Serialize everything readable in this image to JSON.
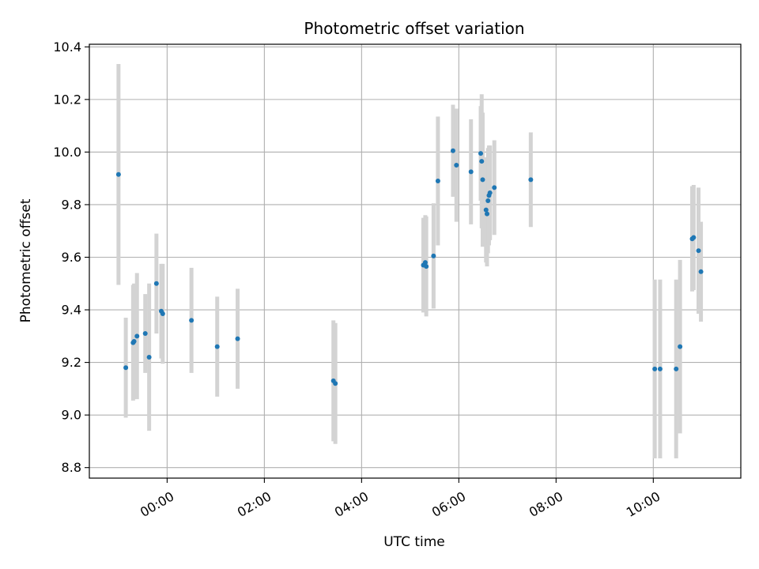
{
  "chart_data": {
    "type": "scatter",
    "title": "Photometric offset variation",
    "xlabel": "UTC time",
    "ylabel": "Photometric offset",
    "x_unit": "hours",
    "xlim": [
      -1.6,
      11.8
    ],
    "ylim": [
      8.76,
      10.41
    ],
    "grid": true,
    "x_ticks": [
      {
        "value": 0,
        "label": "00:00"
      },
      {
        "value": 2,
        "label": "02:00"
      },
      {
        "value": 4,
        "label": "04:00"
      },
      {
        "value": 6,
        "label": "06:00"
      },
      {
        "value": 8,
        "label": "08:00"
      },
      {
        "value": 10,
        "label": "10:00"
      }
    ],
    "y_ticks": [
      {
        "value": 8.8,
        "label": "8.8"
      },
      {
        "value": 9.0,
        "label": "9.0"
      },
      {
        "value": 9.2,
        "label": "9.2"
      },
      {
        "value": 9.4,
        "label": "9.4"
      },
      {
        "value": 9.6,
        "label": "9.6"
      },
      {
        "value": 9.8,
        "label": "9.8"
      },
      {
        "value": 10.0,
        "label": "10.0"
      },
      {
        "value": 10.2,
        "label": "10.2"
      },
      {
        "value": 10.4,
        "label": "10.4"
      }
    ],
    "point_color": "#1f77b4",
    "errorbar_color": "#d3d3d3",
    "points": [
      {
        "x": -1.0,
        "y": 9.915,
        "err": 0.42
      },
      {
        "x": -0.85,
        "y": 9.18,
        "err": 0.19
      },
      {
        "x": -0.7,
        "y": 9.275,
        "err": 0.22
      },
      {
        "x": -0.68,
        "y": 9.28,
        "err": 0.22
      },
      {
        "x": -0.62,
        "y": 9.3,
        "err": 0.24
      },
      {
        "x": -0.45,
        "y": 9.31,
        "err": 0.15
      },
      {
        "x": -0.37,
        "y": 9.22,
        "err": 0.28
      },
      {
        "x": -0.22,
        "y": 9.5,
        "err": 0.19
      },
      {
        "x": -0.12,
        "y": 9.395,
        "err": 0.18
      },
      {
        "x": -0.09,
        "y": 9.385,
        "err": 0.19
      },
      {
        "x": 0.5,
        "y": 9.36,
        "err": 0.2
      },
      {
        "x": 1.03,
        "y": 9.26,
        "err": 0.19
      },
      {
        "x": 1.45,
        "y": 9.29,
        "err": 0.19
      },
      {
        "x": 3.42,
        "y": 9.13,
        "err": 0.23
      },
      {
        "x": 3.46,
        "y": 9.12,
        "err": 0.23
      },
      {
        "x": 5.27,
        "y": 9.57,
        "err": 0.18
      },
      {
        "x": 5.31,
        "y": 9.58,
        "err": 0.18
      },
      {
        "x": 5.33,
        "y": 9.565,
        "err": 0.19
      },
      {
        "x": 5.48,
        "y": 9.605,
        "err": 0.2
      },
      {
        "x": 5.57,
        "y": 9.89,
        "err": 0.245
      },
      {
        "x": 5.88,
        "y": 10.005,
        "err": 0.175
      },
      {
        "x": 5.95,
        "y": 9.95,
        "err": 0.215
      },
      {
        "x": 6.25,
        "y": 9.925,
        "err": 0.2
      },
      {
        "x": 6.45,
        "y": 9.995,
        "err": 0.18
      },
      {
        "x": 6.47,
        "y": 9.965,
        "err": 0.255
      },
      {
        "x": 6.49,
        "y": 9.895,
        "err": 0.255
      },
      {
        "x": 6.56,
        "y": 9.78,
        "err": 0.2
      },
      {
        "x": 6.58,
        "y": 9.765,
        "err": 0.2
      },
      {
        "x": 6.6,
        "y": 9.815,
        "err": 0.2
      },
      {
        "x": 6.62,
        "y": 9.835,
        "err": 0.19
      },
      {
        "x": 6.64,
        "y": 9.845,
        "err": 0.18
      },
      {
        "x": 6.73,
        "y": 9.865,
        "err": 0.18
      },
      {
        "x": 7.48,
        "y": 9.895,
        "err": 0.18
      },
      {
        "x": 10.03,
        "y": 9.175,
        "err": 0.34
      },
      {
        "x": 10.14,
        "y": 9.175,
        "err": 0.34
      },
      {
        "x": 10.47,
        "y": 9.175,
        "err": 0.34
      },
      {
        "x": 10.55,
        "y": 9.26,
        "err": 0.33
      },
      {
        "x": 10.8,
        "y": 9.67,
        "err": 0.2
      },
      {
        "x": 10.83,
        "y": 9.675,
        "err": 0.2
      },
      {
        "x": 10.93,
        "y": 9.625,
        "err": 0.24
      },
      {
        "x": 10.98,
        "y": 9.545,
        "err": 0.19
      }
    ]
  }
}
